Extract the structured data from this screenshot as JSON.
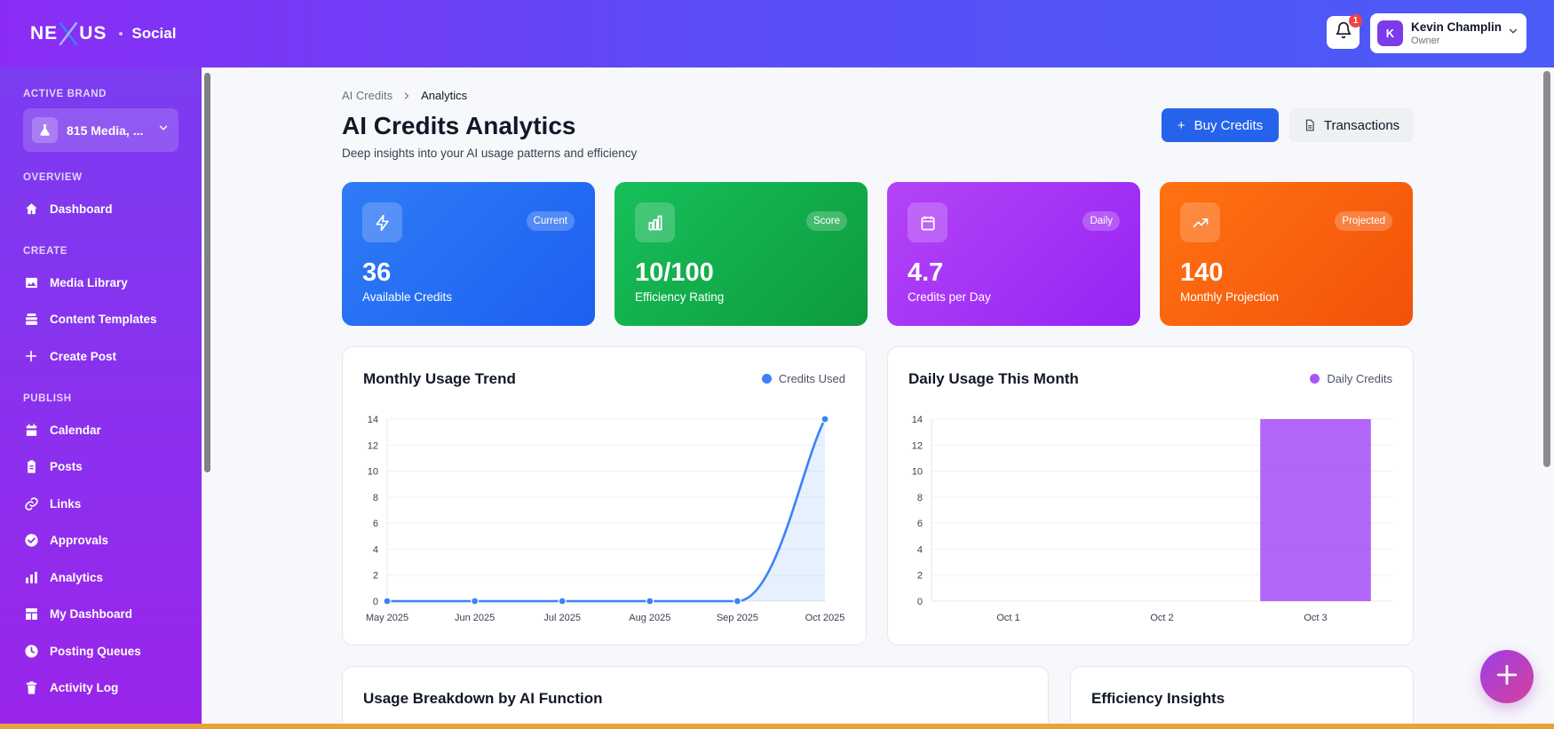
{
  "topbar": {
    "logo_left": "NE",
    "logo_right": "US",
    "product": "Social",
    "notification_count": "1",
    "user": {
      "initial": "K",
      "name": "Kevin Champlin",
      "role": "Owner"
    }
  },
  "sidebar": {
    "active_brand_label": "ACTIVE BRAND",
    "brand_name": "815 Media, ...",
    "sections": {
      "overview": "OVERVIEW",
      "create": "CREATE",
      "publish": "PUBLISH"
    },
    "items": {
      "dashboard": "Dashboard",
      "media_library": "Media Library",
      "content_templates": "Content Templates",
      "create_post": "Create Post",
      "calendar": "Calendar",
      "posts": "Posts",
      "links": "Links",
      "approvals": "Approvals",
      "analytics": "Analytics",
      "my_dashboard": "My Dashboard",
      "posting_queues": "Posting Queues",
      "activity_log": "Activity Log"
    }
  },
  "breadcrumb": {
    "parent": "AI Credits",
    "current": "Analytics"
  },
  "page": {
    "title": "AI Credits Analytics",
    "subtitle": "Deep insights into your AI usage patterns and efficiency",
    "buy_label": "Buy Credits",
    "transactions_label": "Transactions"
  },
  "stats": [
    {
      "badge": "Current",
      "value": "36",
      "label": "Available Credits",
      "icon": "lightning-icon"
    },
    {
      "badge": "Score",
      "value": "10/100",
      "label": "Efficiency Rating",
      "icon": "bar-chart-icon"
    },
    {
      "badge": "Daily",
      "value": "4.7",
      "label": "Credits per Day",
      "icon": "calendar-icon"
    },
    {
      "badge": "Projected",
      "value": "140",
      "label": "Monthly Projection",
      "icon": "trending-up-icon"
    }
  ],
  "colors": {
    "accent": "#2563eb",
    "line_series": "#3b82f6",
    "bar_series": "#a855f7",
    "stat_blue": "#2563eb",
    "stat_green": "#16a34a",
    "stat_purple": "#a93cf6",
    "stat_orange": "#f75a0f"
  },
  "panels": {
    "usage_breakdown_title": "Usage Breakdown by AI Function",
    "efficiency_title": "Efficiency Insights"
  },
  "chart_data": [
    {
      "type": "line",
      "title": "Monthly Usage Trend",
      "series": [
        {
          "name": "Credits Used",
          "values": [
            0,
            0,
            0,
            0,
            0,
            14
          ]
        }
      ],
      "x": [
        "May 2025",
        "Jun 2025",
        "Jul 2025",
        "Aug 2025",
        "Sep 2025",
        "Oct 2025"
      ],
      "ylim": [
        0,
        14
      ],
      "yticks": [
        0,
        2,
        4,
        6,
        8,
        10,
        12,
        14
      ],
      "grid": true,
      "legend": "top-right"
    },
    {
      "type": "bar",
      "title": "Daily Usage This Month",
      "series": [
        {
          "name": "Daily Credits",
          "values": [
            0,
            0,
            14
          ]
        }
      ],
      "categories": [
        "Oct 1",
        "Oct 2",
        "Oct 3"
      ],
      "ylim": [
        0,
        14
      ],
      "yticks": [
        0,
        2,
        4,
        6,
        8,
        10,
        12,
        14
      ],
      "grid": true,
      "legend": "top-right"
    }
  ]
}
